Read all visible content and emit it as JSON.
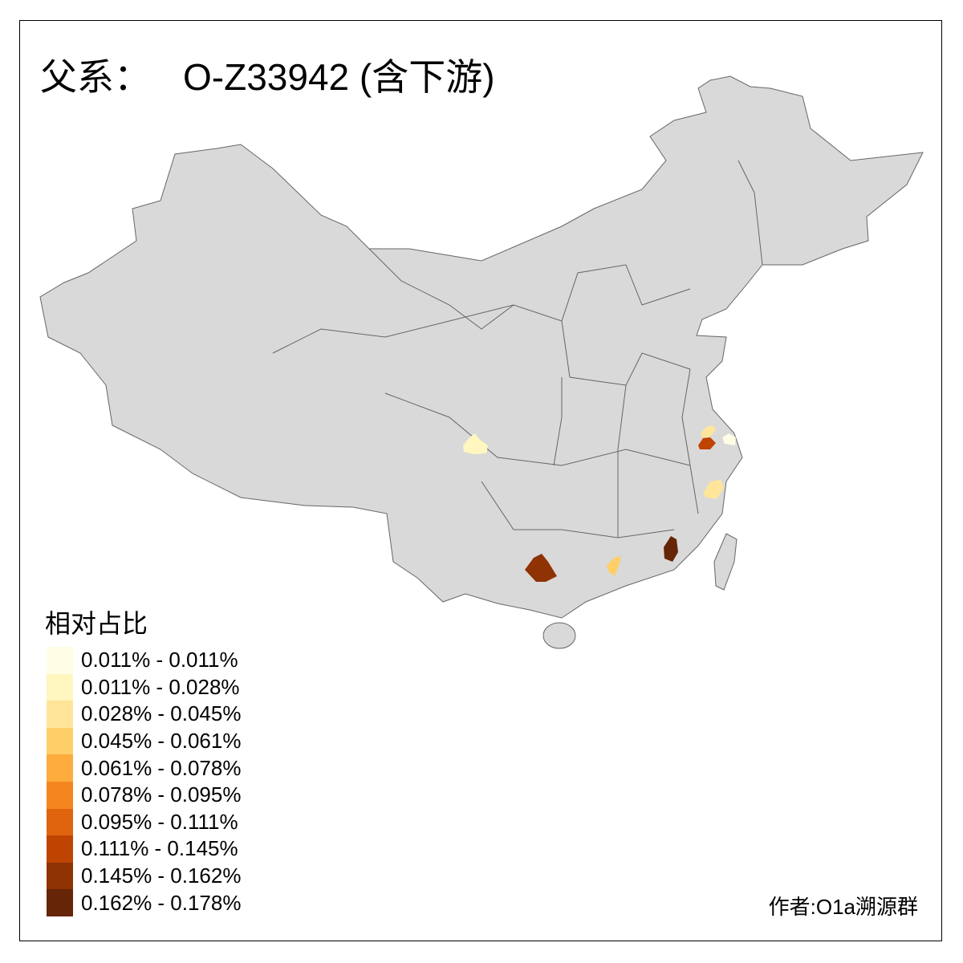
{
  "title": {
    "prefix": "父系：",
    "haplogroup": "O-Z33942 (含下游)"
  },
  "map": {
    "base_fill": "#d9d9d9",
    "border_color": "#666666",
    "highlighted_regions": [
      {
        "class": 1
      },
      {
        "class": 7
      },
      {
        "class": 2
      },
      {
        "class": 0
      },
      {
        "class": 2
      },
      {
        "class": 8
      },
      {
        "class": 3
      },
      {
        "class": 9
      }
    ]
  },
  "legend": {
    "title": "相对占比",
    "items": [
      {
        "label": "0.011% - 0.011%",
        "color": "#FFFDE6"
      },
      {
        "label": "0.011% - 0.028%",
        "color": "#FFF6C0"
      },
      {
        "label": "0.028% - 0.045%",
        "color": "#FFE59A"
      },
      {
        "label": "0.045% - 0.061%",
        "color": "#FECF68"
      },
      {
        "label": "0.061% - 0.078%",
        "color": "#FDAC3D"
      },
      {
        "label": "0.078% - 0.095%",
        "color": "#F5861F"
      },
      {
        "label": "0.095% - 0.111%",
        "color": "#E0640E"
      },
      {
        "label": "0.111% - 0.145%",
        "color": "#BF4402"
      },
      {
        "label": "0.145% - 0.162%",
        "color": "#8F3204"
      },
      {
        "label": "0.162% - 0.178%",
        "color": "#662506"
      }
    ]
  },
  "credit": "作者:O1a溯源群"
}
